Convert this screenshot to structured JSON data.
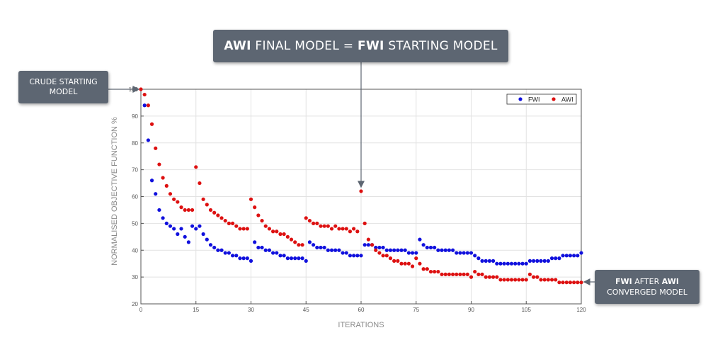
{
  "callouts": {
    "top": {
      "bold1": "AWI",
      "text1": " FINAL MODEL = ",
      "bold2": "FWI",
      "text2": " STARTING MODEL"
    },
    "left": {
      "line1": "CRUDE STARTING",
      "line2": "MODEL"
    },
    "right": {
      "bold1": "FWI",
      "text1": " AFTER ",
      "bold2": "AWI",
      "line2": "CONVERGED MODEL"
    }
  },
  "colors": {
    "fwi": "#1010dd",
    "awi": "#dd1010",
    "callout": "#5d6672"
  },
  "chart_data": {
    "type": "scatter",
    "xlabel": "ITERATIONS",
    "ylabel": "NORMALISED OBJECTIVE FUNCTION %",
    "xlim": [
      0,
      120
    ],
    "ylim": [
      20,
      100
    ],
    "xticks": [
      0,
      15,
      30,
      45,
      60,
      75,
      90,
      105,
      120
    ],
    "yticks": [
      20,
      30,
      40,
      50,
      60,
      70,
      80,
      90,
      100
    ],
    "grid": true,
    "legend": "top-right",
    "series": [
      {
        "name": "FWI",
        "x": [
          1,
          2,
          3,
          4,
          5,
          6,
          7,
          8,
          9,
          10,
          11,
          12,
          13,
          14,
          15,
          16,
          17,
          18,
          19,
          20,
          21,
          22,
          23,
          24,
          25,
          26,
          27,
          28,
          29,
          30,
          31,
          32,
          33,
          34,
          35,
          36,
          37,
          38,
          39,
          40,
          41,
          42,
          43,
          44,
          45,
          46,
          47,
          48,
          49,
          50,
          51,
          52,
          53,
          54,
          55,
          56,
          57,
          58,
          59,
          60,
          61,
          62,
          63,
          64,
          65,
          66,
          67,
          68,
          69,
          70,
          71,
          72,
          73,
          74,
          75,
          76,
          77,
          78,
          79,
          80,
          81,
          82,
          83,
          84,
          85,
          86,
          87,
          88,
          89,
          90,
          91,
          92,
          93,
          94,
          95,
          96,
          97,
          98,
          99,
          100,
          101,
          102,
          103,
          104,
          105,
          106,
          107,
          108,
          109,
          110,
          111,
          112,
          113,
          114,
          115,
          116,
          117,
          118,
          119,
          120
        ],
        "y": [
          94,
          81,
          66,
          61,
          55,
          52,
          50,
          49,
          48,
          46,
          48,
          45,
          43,
          49,
          48,
          49,
          46,
          44,
          42,
          41,
          40,
          40,
          39,
          39,
          38,
          38,
          37,
          37,
          37,
          36,
          43,
          41,
          41,
          40,
          40,
          39,
          39,
          38,
          38,
          37,
          37,
          37,
          37,
          37,
          36,
          43,
          42,
          41,
          41,
          41,
          40,
          40,
          40,
          40,
          39,
          39,
          38,
          38,
          38,
          38,
          42,
          42,
          42,
          41,
          41,
          41,
          40,
          40,
          40,
          40,
          40,
          40,
          39,
          39,
          39,
          44,
          42,
          41,
          41,
          41,
          40,
          40,
          40,
          40,
          40,
          39,
          39,
          39,
          39,
          39,
          38,
          37,
          36,
          36,
          36,
          36,
          35,
          35,
          35,
          35,
          35,
          35,
          35,
          35,
          35,
          36,
          36,
          36,
          36,
          36,
          36,
          37,
          37,
          37,
          38,
          38,
          38,
          38,
          38,
          39
        ]
      },
      {
        "name": "AWI",
        "x": [
          0,
          1,
          2,
          3,
          4,
          5,
          6,
          7,
          8,
          9,
          10,
          11,
          12,
          13,
          14,
          15,
          16,
          17,
          18,
          19,
          20,
          21,
          22,
          23,
          24,
          25,
          26,
          27,
          28,
          29,
          30,
          31,
          32,
          33,
          34,
          35,
          36,
          37,
          38,
          39,
          40,
          41,
          42,
          43,
          44,
          45,
          46,
          47,
          48,
          49,
          50,
          51,
          52,
          53,
          54,
          55,
          56,
          57,
          58,
          59,
          60,
          61,
          62,
          63,
          64,
          65,
          66,
          67,
          68,
          69,
          70,
          71,
          72,
          73,
          74,
          75,
          76,
          77,
          78,
          79,
          80,
          81,
          82,
          83,
          84,
          85,
          86,
          87,
          88,
          89,
          90,
          91,
          92,
          93,
          94,
          95,
          96,
          97,
          98,
          99,
          100,
          101,
          102,
          103,
          104,
          105,
          106,
          107,
          108,
          109,
          110,
          111,
          112,
          113,
          114,
          115,
          116,
          117,
          118,
          119,
          120
        ],
        "y": [
          100,
          98,
          94,
          87,
          78,
          72,
          67,
          64,
          61,
          59,
          58,
          56,
          55,
          55,
          55,
          71,
          65,
          59,
          57,
          55,
          54,
          53,
          52,
          51,
          50,
          50,
          49,
          48,
          48,
          48,
          59,
          56,
          53,
          51,
          49,
          48,
          47,
          47,
          46,
          46,
          45,
          44,
          43,
          42,
          42,
          52,
          51,
          50,
          50,
          49,
          49,
          49,
          48,
          49,
          48,
          48,
          48,
          47,
          48,
          47,
          62,
          50,
          44,
          42,
          40,
          39,
          38,
          38,
          37,
          36,
          36,
          35,
          35,
          35,
          34,
          37,
          35,
          33,
          33,
          32,
          32,
          32,
          31,
          31,
          31,
          31,
          31,
          31,
          31,
          31,
          30,
          32,
          31,
          31,
          30,
          30,
          30,
          30,
          29,
          29,
          29,
          29,
          29,
          29,
          29,
          29,
          31,
          30,
          30,
          29,
          29,
          29,
          29,
          29,
          28,
          28,
          28,
          28,
          28,
          28,
          28
        ]
      }
    ]
  }
}
